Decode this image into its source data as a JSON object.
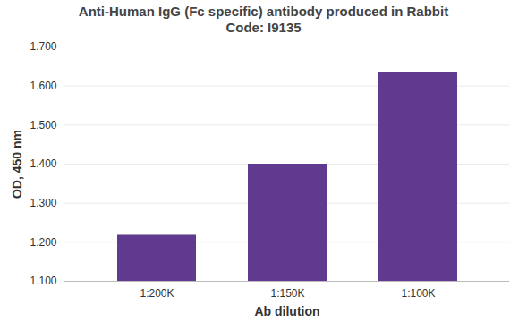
{
  "chart_data": {
    "type": "bar",
    "title": "Anti-Human IgG (Fc specific) antibody produced in Rabbit",
    "subtitle": "Code: I9135",
    "x_label": "Ab dilution",
    "y_label": "OD, 450 nm",
    "categories": [
      "1:200K",
      "1:150K",
      "1:100K"
    ],
    "values": [
      1.218,
      1.4,
      1.635
    ],
    "color": "#5f3a8e",
    "ylim": [
      1.1,
      1.7
    ],
    "yticks": [
      {
        "value": 1.1,
        "label": "1.100"
      },
      {
        "value": 1.2,
        "label": "1.200"
      },
      {
        "value": 1.3,
        "label": "1.300"
      },
      {
        "value": 1.4,
        "label": "1.400"
      },
      {
        "value": 1.5,
        "label": "1.500"
      },
      {
        "value": 1.6,
        "label": "1.600"
      },
      {
        "value": 1.7,
        "label": "1.700"
      }
    ],
    "grid": true
  }
}
